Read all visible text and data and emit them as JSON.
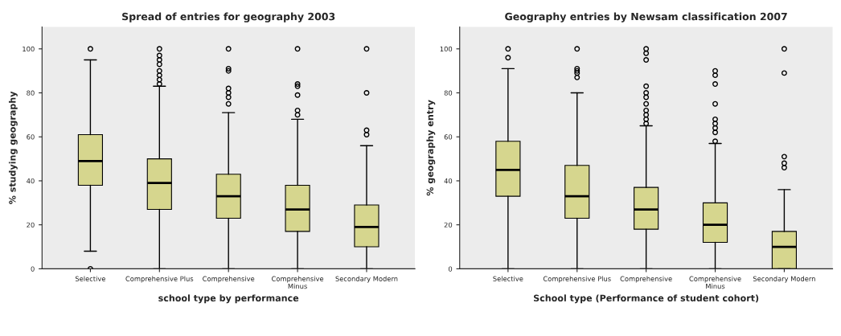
{
  "chart_data": [
    {
      "type": "box",
      "title": "Spread of entries for geography 2003",
      "xlabel": "school type by performance",
      "ylabel": "% studying geography",
      "categories": [
        "Selective",
        "Comprehensive Plus",
        "Comprehensive",
        "Comprehensive\nMinus",
        "Secondary Modern"
      ],
      "color": "#d6d68e",
      "ylim": [
        0,
        110
      ],
      "yticks": [
        0,
        20,
        40,
        60,
        80,
        100
      ],
      "grid": false,
      "boxes": [
        {
          "low": 8,
          "q1": 38,
          "median": 49,
          "q3": 61,
          "high": 95,
          "outliers": [
            0,
            100
          ]
        },
        {
          "low": 0,
          "q1": 27,
          "median": 39,
          "q3": 50,
          "high": 83,
          "outliers": [
            84,
            86,
            88,
            90,
            93,
            95,
            97,
            100
          ]
        },
        {
          "low": 0,
          "q1": 23,
          "median": 33,
          "q3": 43,
          "high": 71,
          "outliers": [
            75,
            78,
            80,
            82,
            90,
            91,
            100
          ]
        },
        {
          "low": 0,
          "q1": 17,
          "median": 27,
          "q3": 38,
          "high": 68,
          "outliers": [
            70,
            72,
            79,
            83,
            84,
            100
          ]
        },
        {
          "low": 0,
          "q1": 10,
          "median": 19,
          "q3": 29,
          "high": 56,
          "outliers": [
            61,
            63,
            80,
            100
          ]
        }
      ]
    },
    {
      "type": "box",
      "title": "Geography entries by Newsam classification 2007",
      "xlabel": "School type (Performance of student cohort)",
      "ylabel": "% geography entry",
      "categories": [
        "Selective",
        "Comprehensive Plus",
        "Comprehensive",
        "Comprehensive\nMinus",
        "Secondary Modern"
      ],
      "color": "#d6d68e",
      "ylim": [
        0,
        110
      ],
      "yticks": [
        0,
        20,
        40,
        60,
        80,
        100
      ],
      "grid": false,
      "boxes": [
        {
          "low": 0,
          "q1": 33,
          "median": 45,
          "q3": 58,
          "high": 91,
          "outliers": [
            96,
            100
          ]
        },
        {
          "low": 0,
          "q1": 23,
          "median": 33,
          "q3": 47,
          "high": 80,
          "outliers": [
            87,
            89,
            90,
            91,
            100
          ]
        },
        {
          "low": 0,
          "q1": 18,
          "median": 27,
          "q3": 37,
          "high": 65,
          "outliers": [
            66,
            68,
            70,
            72,
            75,
            78,
            80,
            83,
            95,
            98,
            100
          ]
        },
        {
          "low": 0,
          "q1": 12,
          "median": 20,
          "q3": 30,
          "high": 57,
          "outliers": [
            58,
            62,
            64,
            66,
            68,
            75,
            84,
            88,
            90
          ]
        },
        {
          "low": 0,
          "q1": 0,
          "median": 10,
          "q3": 17,
          "high": 36,
          "outliers": [
            46,
            48,
            51,
            89,
            100
          ]
        }
      ]
    }
  ]
}
